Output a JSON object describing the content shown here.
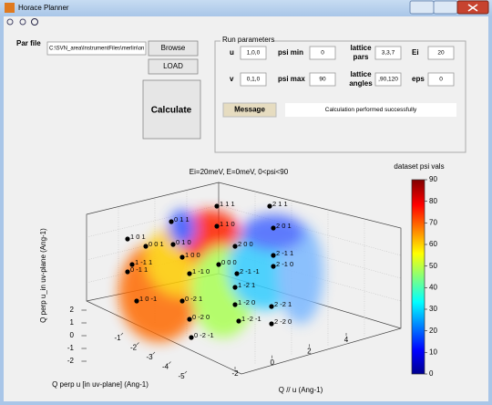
{
  "window": {
    "title": "Horace Planner"
  },
  "form": {
    "par_file_label": "Par file",
    "par_file_value": "C:\\SVN_area\\InstrumentFiles\\merlin\\on",
    "browse": "Browse",
    "load": "LOAD",
    "calculate": "Calculate",
    "panel_title": "Run parameters",
    "u_label": "u",
    "u_value": "1,0,0",
    "v_label": "v",
    "v_value": "0,1,0",
    "psi_min_label": "psi min",
    "psi_min_value": "0",
    "psi_max_label": "psi max",
    "psi_max_value": "90",
    "lattice_pars_label": [
      "lattice",
      "pars"
    ],
    "lattice_pars_value": "3,3,7",
    "lattice_angles_label": [
      "lattice",
      "angles"
    ],
    "lattice_angles_value": ",90,120",
    "ei_label": "Ei",
    "ei_value": "20",
    "eps_label": "eps",
    "eps_value": "0",
    "message_label": "Message",
    "message_value": "Calculation performed successfully"
  },
  "chart_data": {
    "type": "scatter3d",
    "title": "Ei=20meV, E=0meV, 0<psi<90",
    "zlabel": "Q perp u_in uv-plane (Ang-1)",
    "ylabel": "Q perp u [in uv-plane] (Ang-1)",
    "xlabel": "Q // u (Ang-1)",
    "zticks": [
      -2,
      -1,
      0,
      1,
      2
    ],
    "yticks": [
      -5,
      -4,
      -3,
      -2,
      -1
    ],
    "xticks": [
      -2,
      0,
      2,
      4
    ],
    "points": [
      "1 1 1",
      "0 1 1",
      "1 1 0",
      "0 1 0",
      "1 0 1",
      "0 0 1",
      "1 0 0",
      "0 0 0",
      "1 -1 1",
      "0 -1 1",
      "1 -1 0",
      "1 0 -1",
      "0 -2 1",
      "0 -2 0",
      "0 -2 -1",
      "2 1 1",
      "2 0 1",
      "2 0 0",
      "2 -1 1",
      "2 -1 0",
      "2 -1 -1",
      "1 -2 1",
      "1 -2 0",
      "2 -2 1",
      "2 -2 0",
      "1 -2 -1"
    ],
    "colorbar": {
      "label": "dataset psi vals",
      "lim": [
        0,
        90
      ],
      "ticks": [
        0,
        10,
        20,
        30,
        40,
        50,
        60,
        70,
        80,
        90
      ]
    }
  }
}
